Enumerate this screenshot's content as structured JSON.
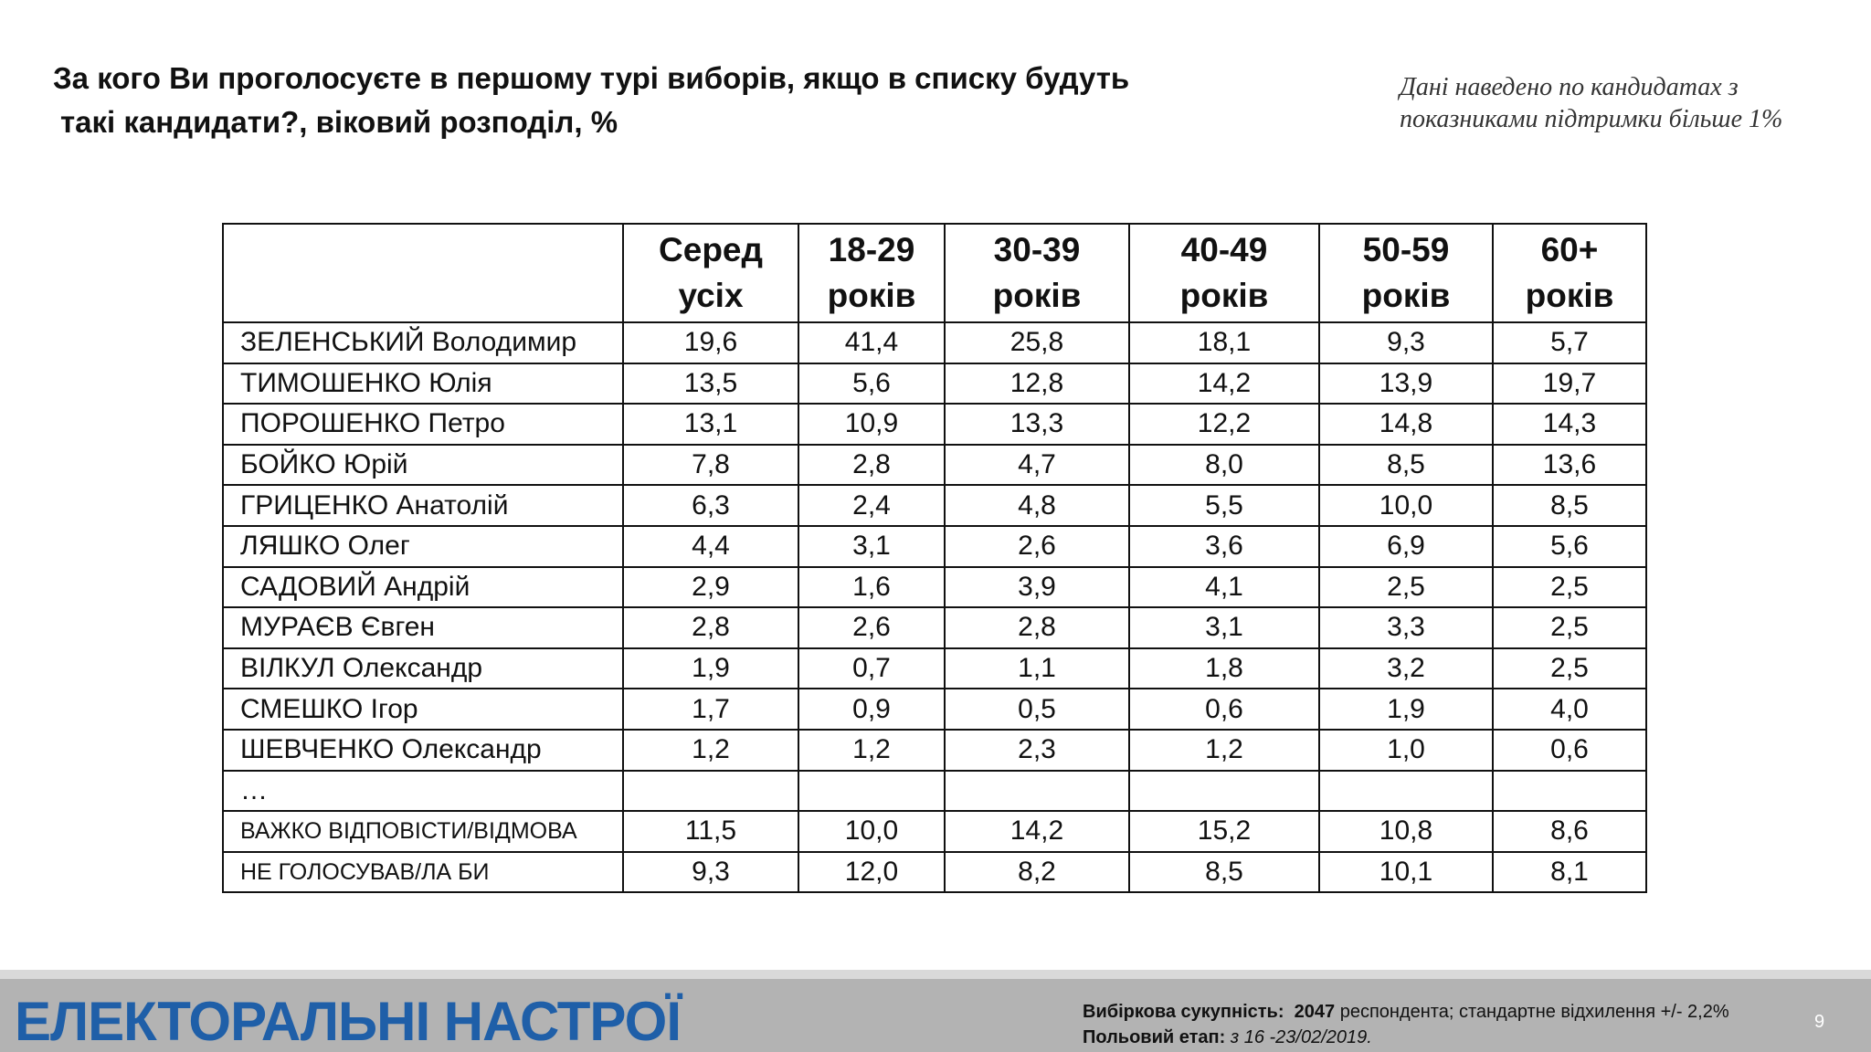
{
  "title": {
    "line1": "За кого Ви проголосуєте в першому турі виборів, якщо в списку будуть",
    "line2": "такі кандидати?, віковий розподіл, %"
  },
  "note": "Дані наведено по кандидатах з показниками підтримки більше 1%",
  "table": {
    "headers": [
      {
        "top": "Серед",
        "bottom": "усіх"
      },
      {
        "top": "18-29",
        "bottom": "років"
      },
      {
        "top": "30-39",
        "bottom": "років"
      },
      {
        "top": "40-49",
        "bottom": "років"
      },
      {
        "top": "50-59",
        "bottom": "років"
      },
      {
        "top": "60+",
        "bottom": "років"
      }
    ],
    "rows": [
      {
        "name": "ЗЕЛЕНСЬКИЙ Володимир",
        "values": [
          "19,6",
          "41,4",
          "25,8",
          "18,1",
          "9,3",
          "5,7"
        ]
      },
      {
        "name": "ТИМОШЕНКО Юлія",
        "values": [
          "13,5",
          "5,6",
          "12,8",
          "14,2",
          "13,9",
          "19,7"
        ]
      },
      {
        "name": "ПОРОШЕНКО Петро",
        "values": [
          "13,1",
          "10,9",
          "13,3",
          "12,2",
          "14,8",
          "14,3"
        ]
      },
      {
        "name": "БОЙКО Юрій",
        "values": [
          "7,8",
          "2,8",
          "4,7",
          "8,0",
          "8,5",
          "13,6"
        ]
      },
      {
        "name": "ГРИЦЕНКО Анатолій",
        "values": [
          "6,3",
          "2,4",
          "4,8",
          "5,5",
          "10,0",
          "8,5"
        ]
      },
      {
        "name": "ЛЯШКО Олег",
        "values": [
          "4,4",
          "3,1",
          "2,6",
          "3,6",
          "6,9",
          "5,6"
        ]
      },
      {
        "name": "САДОВИЙ Андрій",
        "values": [
          "2,9",
          "1,6",
          "3,9",
          "4,1",
          "2,5",
          "2,5"
        ]
      },
      {
        "name": "МУРАЄВ Євген",
        "values": [
          "2,8",
          "2,6",
          "2,8",
          "3,1",
          "3,3",
          "2,5"
        ]
      },
      {
        "name": "ВІЛКУЛ Олександр",
        "values": [
          "1,9",
          "0,7",
          "1,1",
          "1,8",
          "3,2",
          "2,5"
        ]
      },
      {
        "name": "СМЕШКО Ігор",
        "values": [
          "1,7",
          "0,9",
          "0,5",
          "0,6",
          "1,9",
          "4,0"
        ]
      },
      {
        "name": "ШЕВЧЕНКО Олександр",
        "values": [
          "1,2",
          "1,2",
          "2,3",
          "1,2",
          "1,0",
          "0,6"
        ]
      },
      {
        "name": "…",
        "values": [
          "",
          "",
          "",
          "",
          "",
          ""
        ]
      },
      {
        "name": "ВАЖКО ВІДПОВІСТИ/ВІДМОВА",
        "values": [
          "11,5",
          "10,0",
          "14,2",
          "15,2",
          "10,8",
          "8,6"
        ]
      },
      {
        "name": "НЕ ГОЛОСУВАВ/ЛА БИ",
        "values": [
          "9,3",
          "12,0",
          "8,2",
          "8,5",
          "10,1",
          "8,1"
        ]
      }
    ]
  },
  "footer": {
    "brand": "ЕЛЕКТОРАЛЬНІ НАСТРОЇ",
    "sample_label": "Вибіркова сукупність:",
    "sample_count": "2047",
    "sample_rest": "респондента; стандартне  відхилення +/- 2,2%",
    "field_label": "Польовий етап:",
    "field_value": "з 16 -23/02/2019.",
    "page_number": "9"
  },
  "colors": {
    "brand": "#1f5fa8",
    "footer_bg": "#b3b3b3",
    "footer_stripe": "#d9d9d9"
  }
}
